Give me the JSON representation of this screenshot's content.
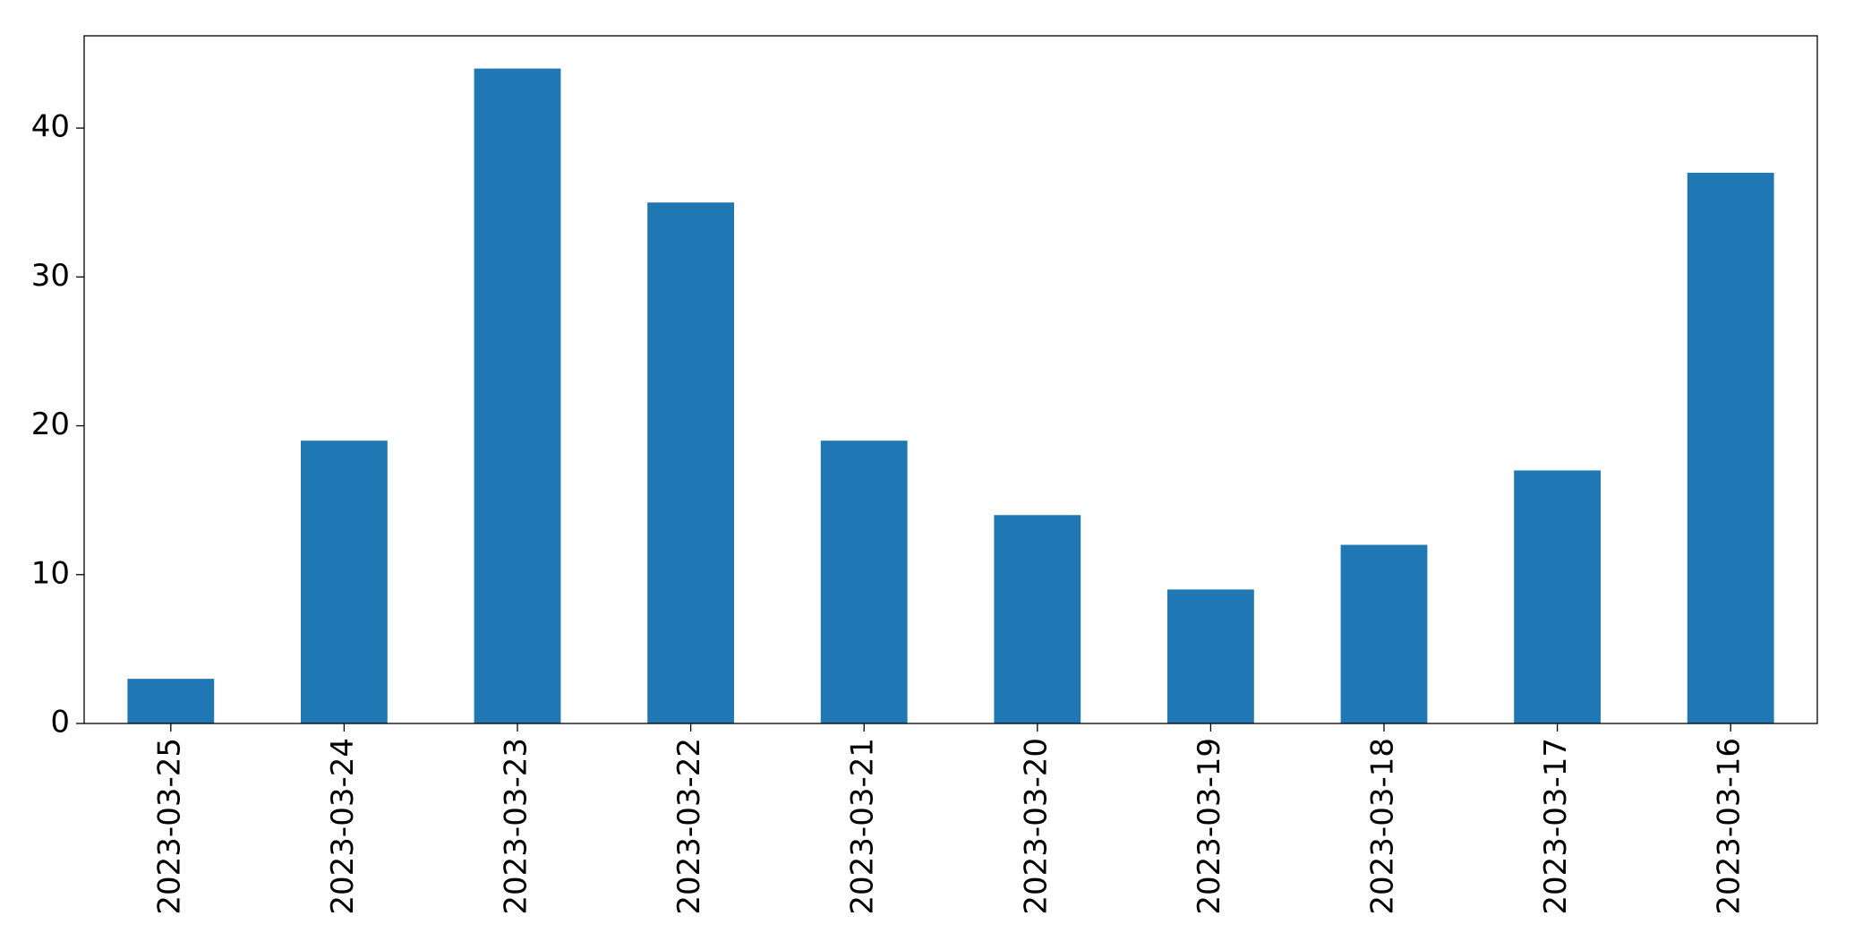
{
  "chart_data": {
    "type": "bar",
    "categories": [
      "2023-03-25",
      "2023-03-24",
      "2023-03-23",
      "2023-03-22",
      "2023-03-21",
      "2023-03-20",
      "2023-03-19",
      "2023-03-18",
      "2023-03-17",
      "2023-03-16"
    ],
    "values": [
      3,
      19,
      44,
      35,
      19,
      14,
      9,
      12,
      17,
      37
    ],
    "color": "#1f77b4",
    "ylim": [
      0,
      46.2
    ],
    "yticks": [
      0,
      10,
      20,
      30,
      40
    ],
    "grid": false
  }
}
